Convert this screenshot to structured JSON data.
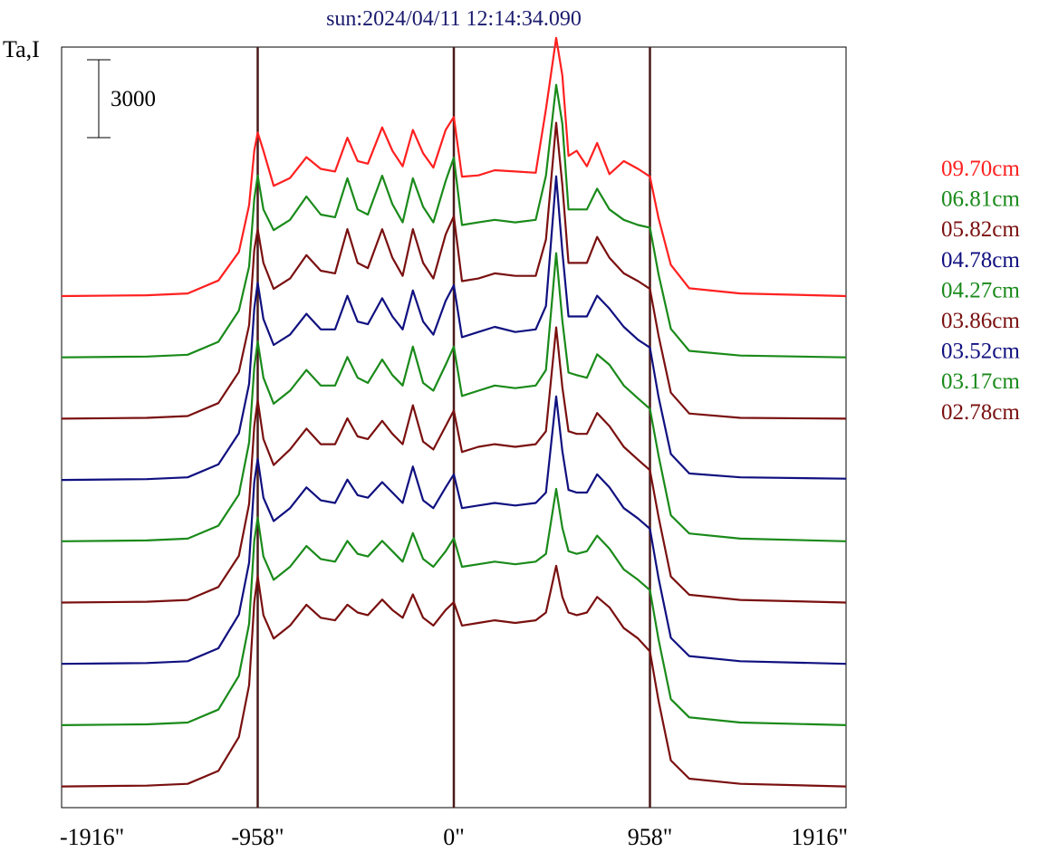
{
  "chart_data": {
    "type": "line",
    "title": "sun:2024/04/11 12:14:34.090",
    "ylabel": "Ta,I",
    "scale_bar_label": "3000",
    "scale_bar_value": 3000,
    "xlim": [
      -1916,
      1916
    ],
    "x_ticks": [
      {
        "value": -1916,
        "label": "-1916\""
      },
      {
        "value": -958,
        "label": "-958\""
      },
      {
        "value": 0,
        "label": "0\""
      },
      {
        "value": 958,
        "label": "958\""
      },
      {
        "value": 1916,
        "label": "1916\""
      }
    ],
    "vertical_lines": [
      -958,
      0,
      958
    ],
    "vertical_line_color": "#4a1a1a",
    "y_unit_stack_top": 3200,
    "series": [
      {
        "name": "09.70cm",
        "color": "#ff2020",
        "offset": 0,
        "x": [
          -1916,
          -1500,
          -1300,
          -1150,
          -1050,
          -1000,
          -975,
          -958,
          -930,
          -880,
          -800,
          -720,
          -650,
          -580,
          -520,
          -470,
          -420,
          -350,
          -300,
          -250,
          -200,
          -150,
          -100,
          -40,
          0,
          40,
          120,
          200,
          300,
          400,
          450,
          500,
          530,
          560,
          600,
          650,
          700,
          760,
          830,
          900,
          958,
          1000,
          1060,
          1150,
          1400,
          1916
        ],
        "y": [
          0,
          30,
          100,
          600,
          1700,
          3500,
          5600,
          6300,
          5600,
          4250,
          4550,
          5350,
          4900,
          4800,
          6100,
          5200,
          5100,
          6500,
          5600,
          5000,
          6400,
          5500,
          4950,
          6400,
          6900,
          4600,
          4650,
          4850,
          4800,
          4750,
          7200,
          9950,
          8500,
          5400,
          5600,
          5000,
          5900,
          4700,
          5200,
          4900,
          4600,
          3000,
          1200,
          300,
          100,
          0
        ]
      },
      {
        "name": "06.81cm",
        "color": "#1a8a1a",
        "offset": 1,
        "x": [
          -1916,
          -1500,
          -1300,
          -1150,
          -1050,
          -1000,
          -975,
          -958,
          -930,
          -880,
          -800,
          -720,
          -650,
          -580,
          -520,
          -470,
          -420,
          -350,
          -300,
          -250,
          -200,
          -150,
          -100,
          -40,
          0,
          40,
          120,
          200,
          300,
          400,
          450,
          500,
          530,
          560,
          600,
          650,
          700,
          760,
          830,
          900,
          958,
          1000,
          1060,
          1150,
          1400,
          1916
        ],
        "y": [
          0,
          30,
          100,
          600,
          1800,
          3500,
          6100,
          7000,
          5700,
          4900,
          5300,
          6200,
          5500,
          5400,
          6900,
          5700,
          5500,
          7000,
          5900,
          5200,
          6900,
          5800,
          5200,
          6800,
          7700,
          5100,
          5200,
          5300,
          5200,
          5300,
          7000,
          10500,
          9000,
          5700,
          5700,
          5700,
          6500,
          5700,
          5300,
          5100,
          5000,
          3200,
          1100,
          250,
          70,
          0
        ]
      },
      {
        "name": "05.82cm",
        "color": "#7a1010",
        "offset": 2,
        "x": [
          -1916,
          -1500,
          -1300,
          -1150,
          -1050,
          -1000,
          -975,
          -958,
          -930,
          -880,
          -800,
          -720,
          -650,
          -580,
          -520,
          -470,
          -420,
          -350,
          -300,
          -250,
          -200,
          -150,
          -100,
          -40,
          0,
          40,
          120,
          200,
          300,
          400,
          450,
          500,
          530,
          560,
          600,
          650,
          700,
          760,
          830,
          900,
          958,
          1000,
          1060,
          1150,
          1400,
          1916
        ],
        "y": [
          0,
          30,
          100,
          600,
          1800,
          3600,
          6500,
          7300,
          6000,
          5000,
          5400,
          6300,
          5700,
          5600,
          7300,
          6000,
          5800,
          7300,
          6200,
          5500,
          7300,
          6000,
          5400,
          7100,
          7800,
          5300,
          5400,
          5600,
          5500,
          5500,
          6900,
          11400,
          9000,
          6000,
          6000,
          6000,
          7000,
          6200,
          5600,
          5300,
          5000,
          3200,
          1000,
          200,
          30,
          0
        ]
      },
      {
        "name": "04.78cm",
        "color": "#101080",
        "offset": 3,
        "x": [
          -1916,
          -1500,
          -1300,
          -1150,
          -1050,
          -1000,
          -975,
          -958,
          -930,
          -880,
          -800,
          -720,
          -650,
          -580,
          -520,
          -470,
          -420,
          -350,
          -300,
          -250,
          -200,
          -150,
          -100,
          -40,
          0,
          40,
          120,
          200,
          300,
          400,
          450,
          500,
          530,
          560,
          600,
          650,
          700,
          760,
          830,
          900,
          958,
          1000,
          1060,
          1150,
          1400,
          1916
        ],
        "y": [
          0,
          30,
          100,
          600,
          1800,
          3700,
          6600,
          7600,
          6200,
          5200,
          5600,
          6400,
          5800,
          5800,
          7100,
          6100,
          6000,
          7000,
          6300,
          5800,
          7300,
          6100,
          5600,
          6900,
          7500,
          5500,
          5700,
          5900,
          5700,
          5800,
          6700,
          11700,
          8800,
          6300,
          6300,
          6300,
          7100,
          6600,
          5900,
          5400,
          5100,
          3200,
          1000,
          250,
          100,
          50
        ]
      },
      {
        "name": "04.27cm",
        "color": "#1a8a1a",
        "offset": 4,
        "x": [
          -1916,
          -1500,
          -1300,
          -1150,
          -1050,
          -1000,
          -975,
          -958,
          -930,
          -880,
          -800,
          -720,
          -650,
          -580,
          -520,
          -470,
          -420,
          -350,
          -300,
          -250,
          -200,
          -150,
          -100,
          -40,
          0,
          40,
          120,
          200,
          300,
          400,
          450,
          500,
          530,
          560,
          600,
          650,
          700,
          760,
          830,
          900,
          958,
          1000,
          1060,
          1150,
          1400,
          1916
        ],
        "y": [
          0,
          30,
          100,
          600,
          1800,
          3800,
          6700,
          7700,
          6300,
          5300,
          5800,
          6600,
          6000,
          6000,
          7100,
          6300,
          6100,
          7000,
          6400,
          6000,
          7500,
          6100,
          5800,
          6800,
          7500,
          5600,
          5800,
          6000,
          5900,
          6000,
          6600,
          11100,
          8500,
          6500,
          6400,
          6300,
          7200,
          6800,
          6000,
          5500,
          5100,
          3300,
          1000,
          300,
          100,
          0
        ]
      },
      {
        "name": "03.86cm",
        "color": "#7a1010",
        "offset": 5,
        "x": [
          -1916,
          -1500,
          -1300,
          -1150,
          -1050,
          -1000,
          -975,
          -958,
          -930,
          -880,
          -800,
          -720,
          -650,
          -580,
          -520,
          -470,
          -420,
          -350,
          -300,
          -250,
          -200,
          -150,
          -100,
          -40,
          0,
          40,
          120,
          200,
          300,
          400,
          450,
          500,
          530,
          560,
          600,
          650,
          700,
          760,
          830,
          900,
          958,
          1000,
          1060,
          1150,
          1400,
          1916
        ],
        "y": [
          0,
          30,
          100,
          600,
          1800,
          3800,
          6800,
          7800,
          6300,
          5300,
          5900,
          6700,
          6100,
          6100,
          7100,
          6400,
          6300,
          7000,
          6500,
          6100,
          7600,
          6200,
          5900,
          6800,
          7400,
          5800,
          6000,
          6100,
          6000,
          6100,
          6600,
          10600,
          8300,
          6600,
          6500,
          6500,
          7300,
          6800,
          6000,
          5500,
          5100,
          3300,
          1000,
          300,
          100,
          0
        ]
      },
      {
        "name": "03.52cm",
        "color": "#101080",
        "offset": 6,
        "x": [
          -1916,
          -1500,
          -1300,
          -1150,
          -1050,
          -1000,
          -975,
          -958,
          -930,
          -880,
          -800,
          -720,
          -650,
          -580,
          -520,
          -470,
          -420,
          -350,
          -300,
          -250,
          -200,
          -150,
          -100,
          -40,
          0,
          40,
          120,
          200,
          300,
          400,
          450,
          500,
          530,
          560,
          600,
          650,
          700,
          760,
          830,
          900,
          958,
          1000,
          1060,
          1150,
          1400,
          1916
        ],
        "y": [
          0,
          30,
          100,
          600,
          1900,
          3900,
          7000,
          7900,
          6400,
          5500,
          6000,
          6800,
          6300,
          6200,
          7100,
          6500,
          6400,
          7000,
          6600,
          6200,
          7600,
          6300,
          6000,
          6800,
          7300,
          6000,
          6100,
          6200,
          6100,
          6200,
          6600,
          10300,
          8200,
          6700,
          6600,
          6600,
          7300,
          6800,
          6000,
          5600,
          5200,
          3300,
          1000,
          300,
          100,
          0
        ]
      },
      {
        "name": "03.17cm",
        "color": "#1a8a1a",
        "offset": 7,
        "x": [
          -1916,
          -1500,
          -1300,
          -1150,
          -1050,
          -1000,
          -975,
          -958,
          -930,
          -880,
          -800,
          -720,
          -650,
          -580,
          -520,
          -470,
          -420,
          -350,
          -300,
          -250,
          -200,
          -150,
          -100,
          -40,
          0,
          40,
          120,
          200,
          300,
          400,
          450,
          500,
          530,
          560,
          600,
          650,
          700,
          760,
          830,
          900,
          958,
          1000,
          1060,
          1150,
          1400,
          1916
        ],
        "y": [
          0,
          30,
          100,
          600,
          1900,
          3900,
          7100,
          8000,
          6500,
          5600,
          6100,
          6900,
          6400,
          6300,
          7100,
          6600,
          6500,
          7100,
          6700,
          6300,
          7400,
          6400,
          6100,
          6700,
          7200,
          6100,
          6200,
          6300,
          6200,
          6300,
          6600,
          9100,
          7600,
          6700,
          6600,
          6700,
          7300,
          6800,
          6000,
          5600,
          5200,
          3300,
          1000,
          300,
          100,
          0
        ]
      },
      {
        "name": "02.78cm",
        "color": "#7a1010",
        "offset": 8,
        "x": [
          -1916,
          -1500,
          -1300,
          -1150,
          -1050,
          -1000,
          -975,
          -958,
          -930,
          -880,
          -800,
          -720,
          -650,
          -580,
          -520,
          -470,
          -420,
          -350,
          -300,
          -250,
          -200,
          -150,
          -100,
          -40,
          0,
          40,
          120,
          200,
          300,
          400,
          450,
          500,
          530,
          560,
          600,
          650,
          700,
          760,
          830,
          900,
          958,
          1000,
          1060,
          1150,
          1400,
          1916
        ],
        "y": [
          0,
          30,
          100,
          600,
          1900,
          3900,
          7100,
          8100,
          6600,
          5700,
          6200,
          7000,
          6500,
          6400,
          7000,
          6700,
          6600,
          7200,
          6800,
          6500,
          7400,
          6500,
          6200,
          6800,
          7100,
          6200,
          6300,
          6400,
          6300,
          6400,
          6700,
          8500,
          7300,
          6700,
          6600,
          6700,
          7300,
          6900,
          6100,
          5700,
          5200,
          3300,
          1000,
          300,
          100,
          0
        ]
      }
    ]
  }
}
